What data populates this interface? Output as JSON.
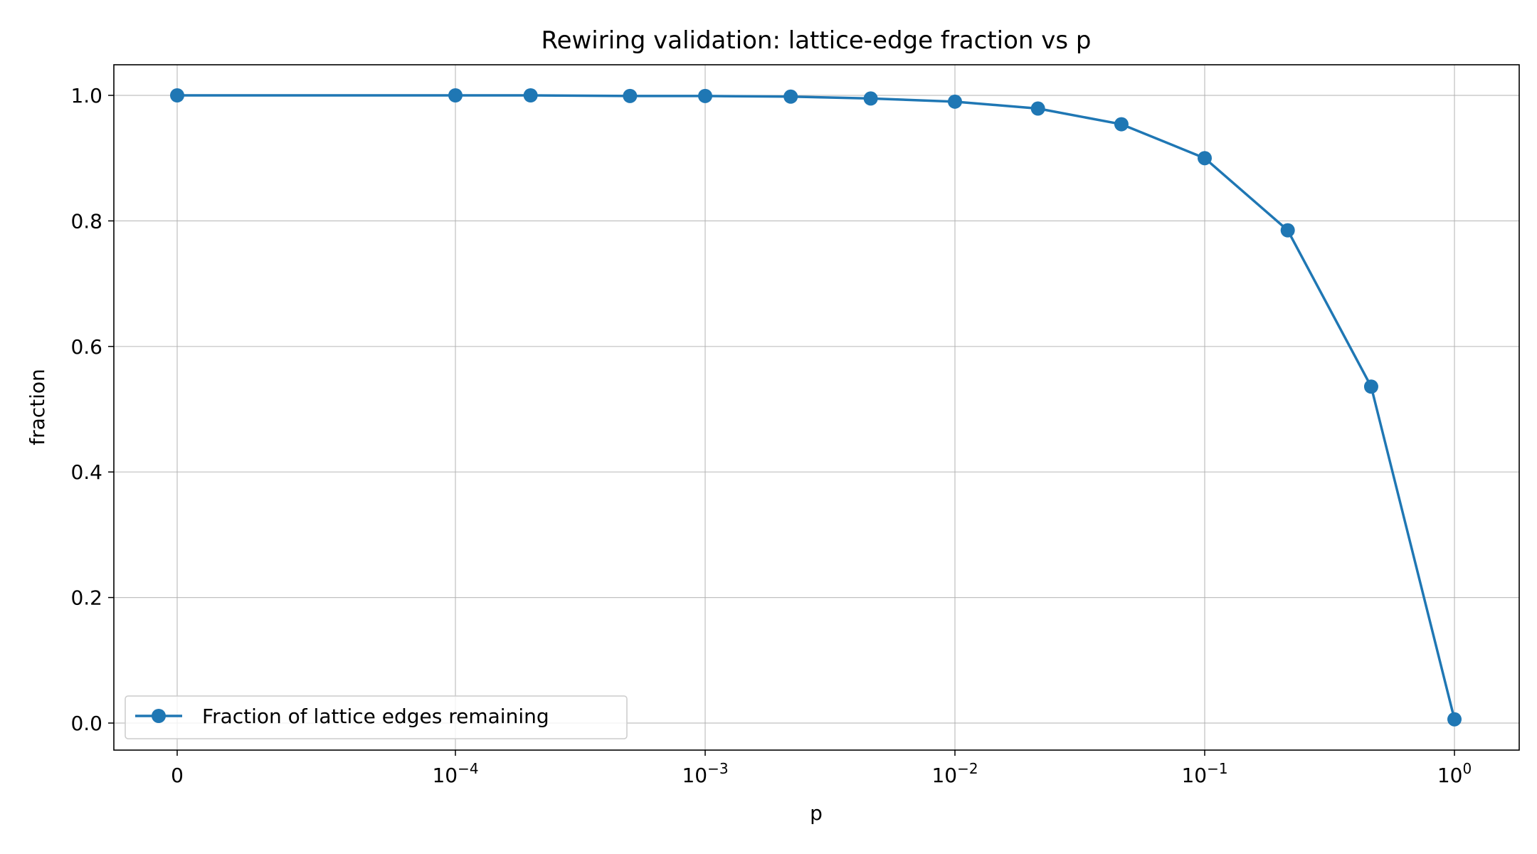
{
  "chart_data": {
    "type": "line",
    "title": "Rewiring validation: lattice-edge fraction vs p",
    "xlabel": "p",
    "ylabel": "fraction",
    "xscale": "symlog",
    "xlim": [
      0,
      1
    ],
    "ylim": [
      -0.05,
      1.05
    ],
    "grid": true,
    "legend_position": "lower-left",
    "x_ticks": [
      {
        "base": "0",
        "exp": ""
      },
      {
        "base": "10",
        "exp": "−4"
      },
      {
        "base": "10",
        "exp": "−3"
      },
      {
        "base": "10",
        "exp": "−2"
      },
      {
        "base": "10",
        "exp": "−1"
      },
      {
        "base": "10",
        "exp": "0"
      }
    ],
    "y_ticks": [
      "0.0",
      "0.2",
      "0.4",
      "0.6",
      "0.8",
      "1.0"
    ],
    "series": [
      {
        "name": "Fraction of lattice edges remaining",
        "color": "#1f77b4",
        "x": [
          0,
          0.0001,
          0.0002,
          0.0005,
          0.001,
          0.0022,
          0.0046,
          0.01,
          0.0215,
          0.0464,
          0.1,
          0.215,
          0.464,
          1.0
        ],
        "y": [
          1.0,
          1.0,
          1.0,
          0.999,
          0.999,
          0.998,
          0.995,
          0.99,
          0.979,
          0.954,
          0.9,
          0.785,
          0.536,
          0.006
        ]
      }
    ]
  }
}
